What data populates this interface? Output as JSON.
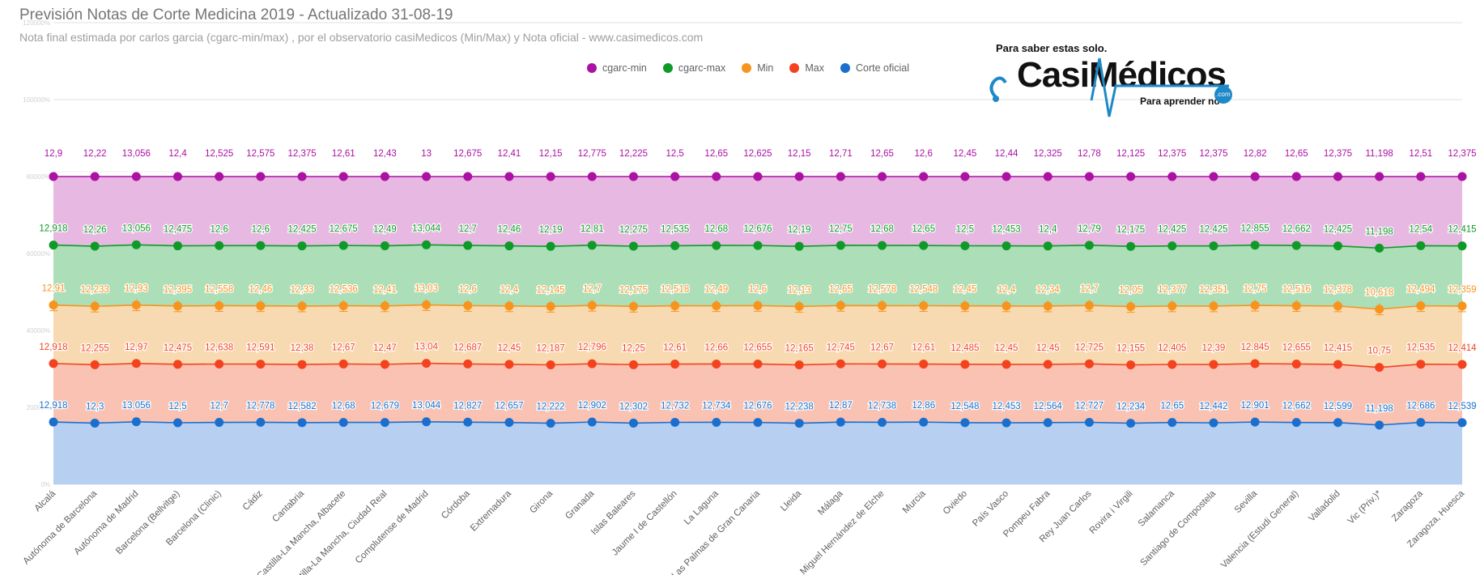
{
  "title": "Previsión Notas de Corte Medicina 2019 - Actualizado 31-08-19",
  "subtitle": "Nota final estimada por carlos garcia (cgarc-min/max) , por el observatorio casiMedicos (Min/Max) y Nota oficial  - www.casimedicos.com",
  "logo": {
    "tagline_top": "Para saber estas solo.",
    "wordmark": "CasiMédicos",
    "tagline_bottom": "Para aprender no",
    "domain": ".com"
  },
  "chart_data": {
    "type": "area",
    "stacking": "percent",
    "y_ticks": [
      "120000%",
      "100000%",
      "80000%",
      "60000%",
      "40000%",
      "20000%",
      "0%"
    ],
    "legend_position": "top",
    "grid": true,
    "categories": [
      "Alcalá",
      "Autónoma de Barcelona",
      "Autónoma de Madrid",
      "Barcelona (Bellvitge)",
      "Barcelona (Clinic)",
      "Cádiz",
      "Cantabria",
      "Castilla-La Mancha, Albacete",
      "Castilla-La Mancha, Ciudad Real",
      "Complutense de Madrid",
      "Córdoba",
      "Extremadura",
      "Girona",
      "Granada",
      "Islas Baleares",
      "Jaume I de Castellón",
      "La Laguna",
      "Las Palmas de Gran Canaria",
      "Lleida",
      "Málaga",
      "Miguel Hernández de Elche",
      "Murcia",
      "Oviedo",
      "País Vasco",
      "Pompeu Fabra",
      "Rey Juan Carlos",
      "Rovira i Virgili",
      "Salamanca",
      "Santiago de Compostela",
      "Sevilla",
      "Valencia (Estudi General)",
      "Valladolid",
      "Vic (Priv.)*",
      "Zaragoza",
      "Zaragoza, Huesca"
    ],
    "series": [
      {
        "name": "cgarc-min",
        "color": "#ab11a3",
        "values": [
          "12,9",
          "12,22",
          "13,056",
          "12,4",
          "12,525",
          "12,575",
          "12,375",
          "12,61",
          "12,43",
          "13",
          "12,675",
          "12,41",
          "12,15",
          "12,775",
          "12,225",
          "12,5",
          "12,65",
          "12,625",
          "12,15",
          "12,71",
          "12,65",
          "12,6",
          "12,45",
          "12,44",
          "12,325",
          "12,78",
          "12,125",
          "12,375",
          "12,375",
          "12,82",
          "12,65",
          "12,375",
          "11,198",
          "12,51",
          "12,375"
        ]
      },
      {
        "name": "cgarc-max",
        "color": "#0e9a27",
        "values": [
          "12,918",
          "12,26",
          "13,056",
          "12,475",
          "12,6",
          "12,6",
          "12,425",
          "12,675",
          "12,49",
          "13,044",
          "12,7",
          "12,46",
          "12,19",
          "12,81",
          "12,275",
          "12,535",
          "12,68",
          "12,676",
          "12,19",
          "12,75",
          "12,68",
          "12,65",
          "12,5",
          "12,453",
          "12,4",
          "12,79",
          "12,175",
          "12,425",
          "12,425",
          "12,855",
          "12,662",
          "12,425",
          "11,198",
          "12,54",
          "12,415"
        ]
      },
      {
        "name": "Min",
        "color": "#f7941d",
        "values": [
          "12,91",
          "12,233",
          "12,93",
          "12,395",
          "12,558",
          "12,46",
          "12,33",
          "12,536",
          "12,41",
          "13,03",
          "12,6",
          "12,4",
          "12,145",
          "12,7",
          "12,175",
          "12,518",
          "12,49",
          "12,6",
          "12,13",
          "12,65",
          "12,578",
          "12,548",
          "12,45",
          "12,4",
          "12,34",
          "12,7",
          "12,05",
          "12,377",
          "12,351",
          "12,75",
          "12,516",
          "12,378",
          "10,618",
          "12,494",
          "12,359"
        ]
      },
      {
        "name": "Max",
        "color": "#f4421f",
        "values": [
          "12,918",
          "12,255",
          "12,97",
          "12,475",
          "12,638",
          "12,591",
          "12,38",
          "12,67",
          "12,47",
          "13,04",
          "12,687",
          "12,45",
          "12,187",
          "12,796",
          "12,25",
          "12,61",
          "12,66",
          "12,655",
          "12,165",
          "12,745",
          "12,67",
          "12,61",
          "12,485",
          "12,45",
          "12,45",
          "12,725",
          "12,155",
          "12,405",
          "12,39",
          "12,845",
          "12,655",
          "12,415",
          "10,75",
          "12,535",
          "12,414"
        ]
      },
      {
        "name": "Corte oficial",
        "color": "#1a6fce",
        "values": [
          "12,918",
          "12,3",
          "13,056",
          "12,5",
          "12,7",
          "12,778",
          "12,582",
          "12,68",
          "12,679",
          "13,044",
          "12,827",
          "12,657",
          "12,222",
          "12,902",
          "12,302",
          "12,732",
          "12,734",
          "12,676",
          "12,238",
          "12,87",
          "12,738",
          "12,86",
          "12,548",
          "12,453",
          "12,564",
          "12,727",
          "12,234",
          "12,65",
          "12,442",
          "12,901",
          "12,662",
          "12,599",
          "11,198",
          "12,686",
          "12,539"
        ]
      }
    ]
  }
}
